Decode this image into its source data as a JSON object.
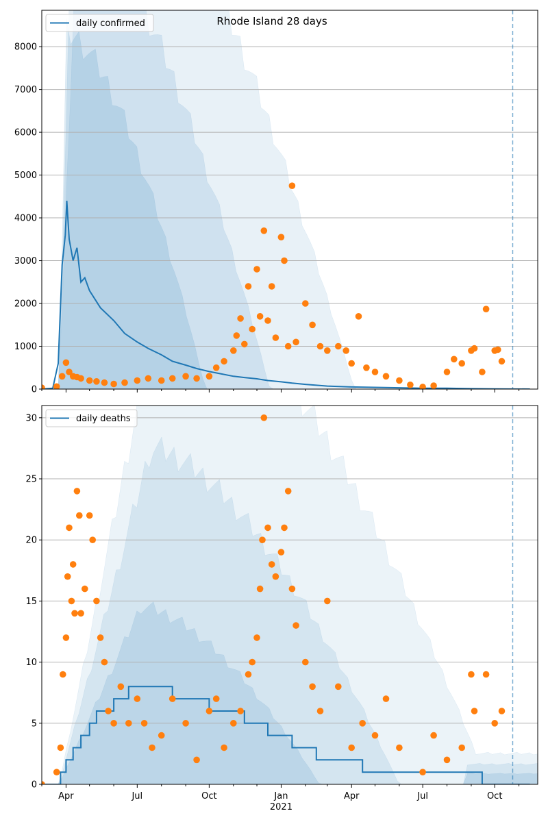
{
  "chart_data": [
    {
      "type": "line",
      "title": "Rhode Island 28 days",
      "xlabel": "",
      "ylabel": "",
      "ylim": [
        0,
        8850
      ],
      "yticks": [
        0,
        1000,
        2000,
        3000,
        4000,
        5000,
        6000,
        7000,
        8000
      ],
      "ytick_labels": [
        "0",
        "1000",
        "2000",
        "3000",
        "4000",
        "5000",
        "6000",
        "7000",
        "8000"
      ],
      "grid": "horizontal",
      "legend": "upper-left",
      "series": [
        {
          "name": "daily confirmed",
          "kind": "line",
          "color": "#1f77b4",
          "x": [
            "2020-03-01",
            "2020-03-15",
            "2020-03-22",
            "2020-03-27",
            "2020-03-31",
            "2020-04-02",
            "2020-04-05",
            "2020-04-10",
            "2020-04-15",
            "2020-04-20",
            "2020-04-25",
            "2020-05-01",
            "2020-05-15",
            "2020-06-01",
            "2020-06-15",
            "2020-07-01",
            "2020-07-15",
            "2020-08-01",
            "2020-08-15",
            "2020-09-01",
            "2020-09-15",
            "2020-10-01",
            "2020-10-15",
            "2020-11-01",
            "2020-11-15",
            "2020-12-01",
            "2020-12-15",
            "2021-01-01",
            "2021-01-15",
            "2021-02-01",
            "2021-02-15",
            "2021-03-01",
            "2021-04-01",
            "2021-05-01",
            "2021-06-01",
            "2021-07-01",
            "2021-08-01",
            "2021-09-01",
            "2021-10-01",
            "2021-11-15"
          ],
          "y": [
            0,
            20,
            600,
            2900,
            3600,
            4400,
            3500,
            3000,
            3300,
            2500,
            2600,
            2300,
            1900,
            1600,
            1300,
            1100,
            950,
            800,
            650,
            560,
            480,
            410,
            360,
            300,
            270,
            240,
            200,
            170,
            140,
            110,
            90,
            70,
            50,
            40,
            30,
            20,
            20,
            10,
            5,
            0
          ]
        },
        {
          "name": "",
          "kind": "scatter",
          "color": "#ff7f0e",
          "x": [
            "2020-03-01",
            "2020-03-20",
            "2020-03-27",
            "2020-04-01",
            "2020-04-05",
            "2020-04-10",
            "2020-04-15",
            "2020-04-20",
            "2020-05-01",
            "2020-05-10",
            "2020-05-20",
            "2020-06-01",
            "2020-06-15",
            "2020-07-01",
            "2020-07-15",
            "2020-08-01",
            "2020-08-15",
            "2020-09-01",
            "2020-09-15",
            "2020-10-01",
            "2020-10-10",
            "2020-10-20",
            "2020-11-01",
            "2020-11-05",
            "2020-11-10",
            "2020-11-15",
            "2020-11-20",
            "2020-11-25",
            "2020-12-01",
            "2020-12-05",
            "2020-12-10",
            "2020-12-15",
            "2020-12-20",
            "2020-12-25",
            "2021-01-01",
            "2021-01-05",
            "2021-01-10",
            "2021-01-15",
            "2021-01-20",
            "2021-02-01",
            "2021-02-10",
            "2021-02-20",
            "2021-03-01",
            "2021-03-15",
            "2021-03-25",
            "2021-04-01",
            "2021-04-10",
            "2021-04-20",
            "2021-05-01",
            "2021-05-15",
            "2021-06-01",
            "2021-06-15",
            "2021-07-01",
            "2021-07-15",
            "2021-08-01",
            "2021-08-10",
            "2021-08-20",
            "2021-09-01",
            "2021-09-05",
            "2021-09-15",
            "2021-09-20",
            "2021-10-01",
            "2021-10-05",
            "2021-10-10"
          ],
          "y": [
            30,
            60,
            300,
            620,
            400,
            300,
            280,
            250,
            200,
            180,
            150,
            120,
            150,
            200,
            250,
            200,
            250,
            300,
            250,
            300,
            500,
            650,
            900,
            1250,
            1650,
            1050,
            2400,
            1400,
            2800,
            1700,
            3700,
            1600,
            2400,
            1200,
            3550,
            3000,
            1000,
            4750,
            1100,
            2000,
            1500,
            1000,
            900,
            1000,
            900,
            600,
            1700,
            500,
            400,
            300,
            200,
            100,
            50,
            80,
            400,
            700,
            600,
            900,
            950,
            400,
            1870,
            900,
            920,
            650
          ]
        }
      ],
      "bands_color": "#1f77b4",
      "marker": {
        "date": "2021-10-24",
        "style": "dashed"
      }
    },
    {
      "type": "line",
      "title": "",
      "xlabel": "",
      "ylabel": "",
      "ylim": [
        0,
        31
      ],
      "yticks": [
        0,
        5,
        10,
        15,
        20,
        25,
        30
      ],
      "ytick_labels": [
        "0",
        "5",
        "10",
        "15",
        "20",
        "25",
        "30"
      ],
      "xticks": [
        "2020-04-01",
        "2020-07-01",
        "2020-10-01",
        "2021-01-01",
        "2021-04-01",
        "2021-07-01",
        "2021-10-01"
      ],
      "xtick_labels": [
        "Apr",
        "Jul",
        "Oct",
        "Jan",
        "Apr",
        "Jul",
        "Oct"
      ],
      "xtick_sublabel": "2021",
      "grid": "horizontal",
      "legend": "upper-left",
      "series": [
        {
          "name": "daily deaths",
          "kind": "step",
          "color": "#1f77b4",
          "x": [
            "2020-03-01",
            "2020-03-25",
            "2020-04-01",
            "2020-04-10",
            "2020-04-20",
            "2020-05-01",
            "2020-05-10",
            "2020-05-20",
            "2020-06-01",
            "2020-06-10",
            "2020-06-20",
            "2020-07-01",
            "2020-07-10",
            "2020-07-20",
            "2020-08-01",
            "2020-08-15",
            "2020-09-01",
            "2020-09-15",
            "2020-10-01",
            "2020-10-15",
            "2020-11-01",
            "2020-11-15",
            "2020-12-01",
            "2020-12-15",
            "2021-01-01",
            "2021-01-15",
            "2021-02-01",
            "2021-02-15",
            "2021-03-01",
            "2021-03-15",
            "2021-04-01",
            "2021-04-15",
            "2021-05-01",
            "2021-05-15",
            "2021-06-01",
            "2021-06-15",
            "2021-07-01",
            "2021-08-01",
            "2021-09-01",
            "2021-09-15",
            "2021-10-01",
            "2021-11-15"
          ],
          "y": [
            0,
            1,
            2,
            3,
            4,
            5,
            6,
            6,
            7,
            7,
            8,
            8,
            8,
            8,
            8,
            7,
            7,
            7,
            6,
            6,
            6,
            5,
            5,
            4,
            4,
            3,
            3,
            2,
            2,
            2,
            2,
            1,
            1,
            1,
            1,
            1,
            1,
            1,
            1,
            0,
            0,
            0
          ]
        },
        {
          "name": "",
          "kind": "scatter",
          "color": "#ff7f0e",
          "x": [
            "2020-03-01",
            "2020-03-20",
            "2020-03-25",
            "2020-03-28",
            "2020-04-01",
            "2020-04-03",
            "2020-04-05",
            "2020-04-08",
            "2020-04-10",
            "2020-04-12",
            "2020-04-15",
            "2020-04-18",
            "2020-04-20",
            "2020-04-25",
            "2020-05-01",
            "2020-05-05",
            "2020-05-10",
            "2020-05-15",
            "2020-05-20",
            "2020-05-25",
            "2020-06-01",
            "2020-06-10",
            "2020-06-20",
            "2020-07-01",
            "2020-07-10",
            "2020-07-20",
            "2020-08-01",
            "2020-08-15",
            "2020-09-01",
            "2020-09-15",
            "2020-10-01",
            "2020-10-10",
            "2020-10-20",
            "2020-11-01",
            "2020-11-10",
            "2020-11-20",
            "2020-11-25",
            "2020-12-01",
            "2020-12-05",
            "2020-12-08",
            "2020-12-10",
            "2020-12-15",
            "2020-12-20",
            "2020-12-25",
            "2021-01-01",
            "2021-01-05",
            "2021-01-10",
            "2021-01-15",
            "2021-01-20",
            "2021-02-01",
            "2021-02-10",
            "2021-02-20",
            "2021-03-01",
            "2021-03-15",
            "2021-04-01",
            "2021-04-15",
            "2021-05-01",
            "2021-05-15",
            "2021-06-01",
            "2021-07-01",
            "2021-07-15",
            "2021-08-01",
            "2021-08-20",
            "2021-09-01",
            "2021-09-05",
            "2021-09-20",
            "2021-10-01",
            "2021-10-10"
          ],
          "y": [
            0,
            1,
            3,
            9,
            12,
            17,
            21,
            15,
            18,
            14,
            24,
            22,
            14,
            16,
            22,
            20,
            15,
            12,
            10,
            6,
            5,
            8,
            5,
            7,
            5,
            3,
            4,
            7,
            5,
            2,
            6,
            7,
            3,
            5,
            6,
            9,
            10,
            12,
            16,
            20,
            30,
            21,
            18,
            17,
            19,
            21,
            24,
            16,
            13,
            10,
            8,
            6,
            15,
            8,
            3,
            5,
            4,
            7,
            3,
            1,
            4,
            2,
            3,
            9,
            6,
            9,
            5,
            6
          ]
        }
      ],
      "bands_color": "#1f77b4",
      "marker": {
        "date": "2021-10-24",
        "style": "dashed"
      }
    }
  ]
}
